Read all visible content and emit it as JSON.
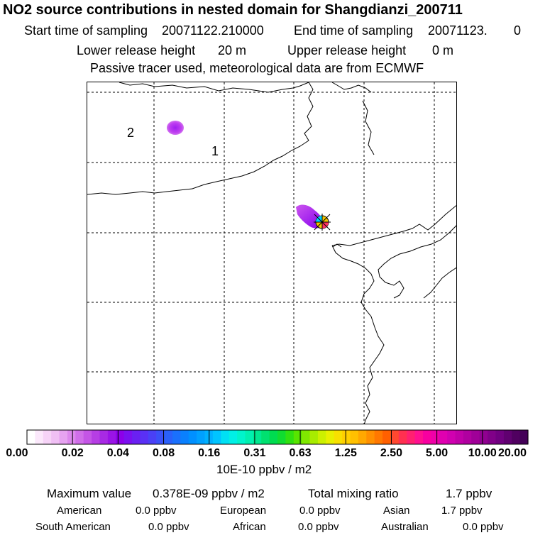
{
  "header": {
    "title": "NO2 source contributions in nested domain for Shangdianzi_200711",
    "start_label": "Start time of sampling",
    "start_value": "20071122.210000",
    "end_label": "End time of sampling",
    "end_value": "20071123.",
    "end_suffix": "0",
    "lower_label": "Lower release height",
    "lower_value": "20 m",
    "upper_label": "Upper release height",
    "upper_value": "0 m",
    "tracer_note": "Passive tracer used, meteorological data are from ECMWF"
  },
  "map": {
    "region_labels": [
      "2",
      "1"
    ]
  },
  "chart_data": {
    "type": "heatmap",
    "colorbar": {
      "ticks": [
        "0.00",
        "0.02",
        "0.04",
        "0.08",
        "0.16",
        "0.31",
        "0.63",
        "1.25",
        "2.50",
        "5.00",
        "10.00",
        "20.00"
      ],
      "unit": "10E-10 ppbv / m2",
      "colors": [
        "#ffffff",
        "#fbe8fb",
        "#f6d3f7",
        "#f0bff4",
        "#e6a3f0",
        "#dc88ec",
        "#d06ee9",
        "#c455e6",
        "#b63ee4",
        "#a82ae4",
        "#9a14e6",
        "#8c00ea",
        "#7a10f0",
        "#6a20f2",
        "#5a30f4",
        "#4a40f6",
        "#3a50f8",
        "#2a60fa",
        "#1a70fc",
        "#0a80fe",
        "#0090ff",
        "#00a0ff",
        "#00b0ff",
        "#00c4ff",
        "#00e0f4",
        "#00f0e6",
        "#00f4cc",
        "#00f0b0",
        "#00e890",
        "#00e070",
        "#00dc50",
        "#10dc30",
        "#30e010",
        "#58e400",
        "#80e800",
        "#a8ec00",
        "#ccf000",
        "#e8f000",
        "#f8e000",
        "#ffd000",
        "#ffc000",
        "#ffa800",
        "#ff9000",
        "#ff7800",
        "#ff6000",
        "#ff4830",
        "#ff3050",
        "#ff2070",
        "#ff1090",
        "#f800a0",
        "#f000a8",
        "#e000b0",
        "#d000b0",
        "#c000a8",
        "#b000a0",
        "#a00098",
        "#900090",
        "#800088",
        "#700080",
        "#600070",
        "#500060",
        "#440058"
      ]
    },
    "plumes": [
      {
        "name": "remote-plume",
        "value": 0.04
      },
      {
        "name": "source-plume",
        "value": 0.05
      }
    ],
    "max_value": "0.378E-09",
    "max_unit": "ppbv / m2"
  },
  "footer": {
    "max_label": "Maximum value",
    "max_value": "0.378E-09 ppbv / m2",
    "total_label": "Total mixing ratio",
    "total_value": "1.7 ppbv",
    "american_label": "American",
    "american_value": "0.0 ppbv",
    "european_label": "European",
    "european_value": "0.0 ppbv",
    "asian_label": "Asian",
    "asian_value": "1.7 ppbv",
    "south_american_label": "South American",
    "south_american_value": "0.0 ppbv",
    "african_label": "African",
    "african_value": "0.0 ppbv",
    "australian_label": "Australian",
    "australian_value": "0.0 ppbv"
  }
}
